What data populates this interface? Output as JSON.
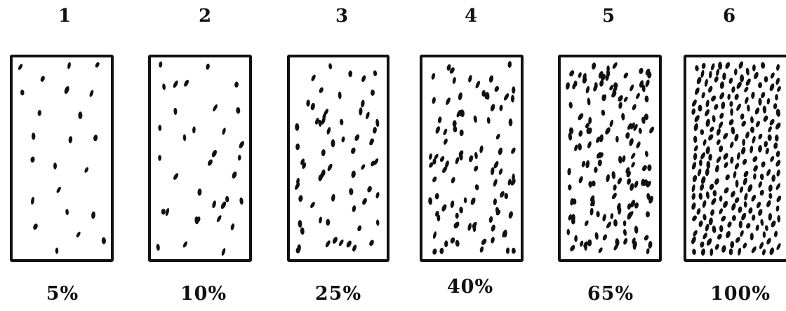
{
  "panels": [
    {
      "number": "1",
      "percent": "5%",
      "coverage": 0.05
    },
    {
      "number": "2",
      "percent": "10%",
      "coverage": 0.1
    },
    {
      "number": "3",
      "percent": "25%",
      "coverage": 0.25
    },
    {
      "number": "4",
      "percent": "40%",
      "coverage": 0.4
    },
    {
      "number": "5",
      "percent": "65%",
      "coverage": 0.65
    },
    {
      "number": "6",
      "percent": "100%",
      "coverage": 1.0
    }
  ],
  "colors": {
    "ink": "#111111",
    "background": "#ffffff"
  }
}
